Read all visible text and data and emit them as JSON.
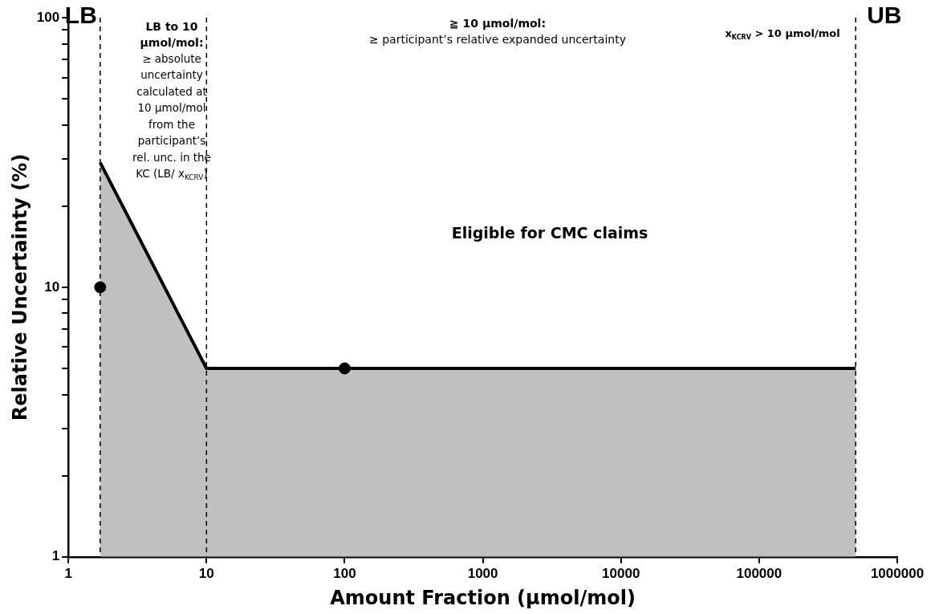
{
  "chart_data": {
    "type": "area",
    "xlabel": "Amount Fraction (µmol/mol)",
    "ylabel": "Relative Uncertainty (%)",
    "log": "xy",
    "xlim": [
      1,
      1000000
    ],
    "xticks": [
      1,
      10,
      100,
      1000,
      10000,
      100000,
      1000000
    ],
    "ylim": [
      1,
      100
    ],
    "yticks": [
      1,
      {
        "value": 2,
        "label": null
      },
      {
        "value": 3,
        "label": null
      },
      {
        "value": 4,
        "label": null
      },
      {
        "value": 5,
        "label": null
      },
      {
        "value": 6,
        "label": null
      },
      {
        "value": 7,
        "label": null
      },
      {
        "value": 8,
        "label": null
      },
      {
        "value": 9,
        "label": null
      },
      10,
      {
        "value": 20,
        "label": null
      },
      {
        "value": 30,
        "label": null
      },
      {
        "value": 40,
        "label": null
      },
      {
        "value": 50,
        "label": null
      },
      {
        "value": 60,
        "label": null
      },
      {
        "value": 70,
        "label": null
      },
      {
        "value": 80,
        "label": null
      },
      {
        "value": 90,
        "label": null
      },
      100
    ],
    "series": [
      {
        "color": "#000000",
        "x": [
          1.7,
          10,
          500000
        ],
        "values": [
          29,
          5,
          5
        ]
      },
      {
        "type": "scatter",
        "color": "#000000",
        "marker": "circle",
        "x": [
          1.7,
          100
        ],
        "values": [
          10,
          5
        ]
      }
    ],
    "ref_lines": [
      {
        "axis": "x",
        "value": 1.7,
        "label": "LB",
        "line_style": "dashed"
      },
      {
        "axis": "x",
        "value": 10,
        "label": null,
        "line_style": "dashed"
      },
      {
        "axis": "x",
        "value": 500000,
        "label": "UB",
        "line_style": "dashed"
      }
    ],
    "annotations": [
      "LB to 10 µmol/mol:",
      "≥ absolute uncertainty calculated at 10 µmol/mol from the participant’s rel. unc. in the KC (LB/ x$_{KCRV}$)",
      "≧ 10 µmol/mol:",
      "≥ participant’s relative expanded uncertainty",
      "x$_{KCRV}$ > 10 µmol/mol",
      "Eligible for CMC claims"
    ],
    "legend": false,
    "grid": false
  }
}
